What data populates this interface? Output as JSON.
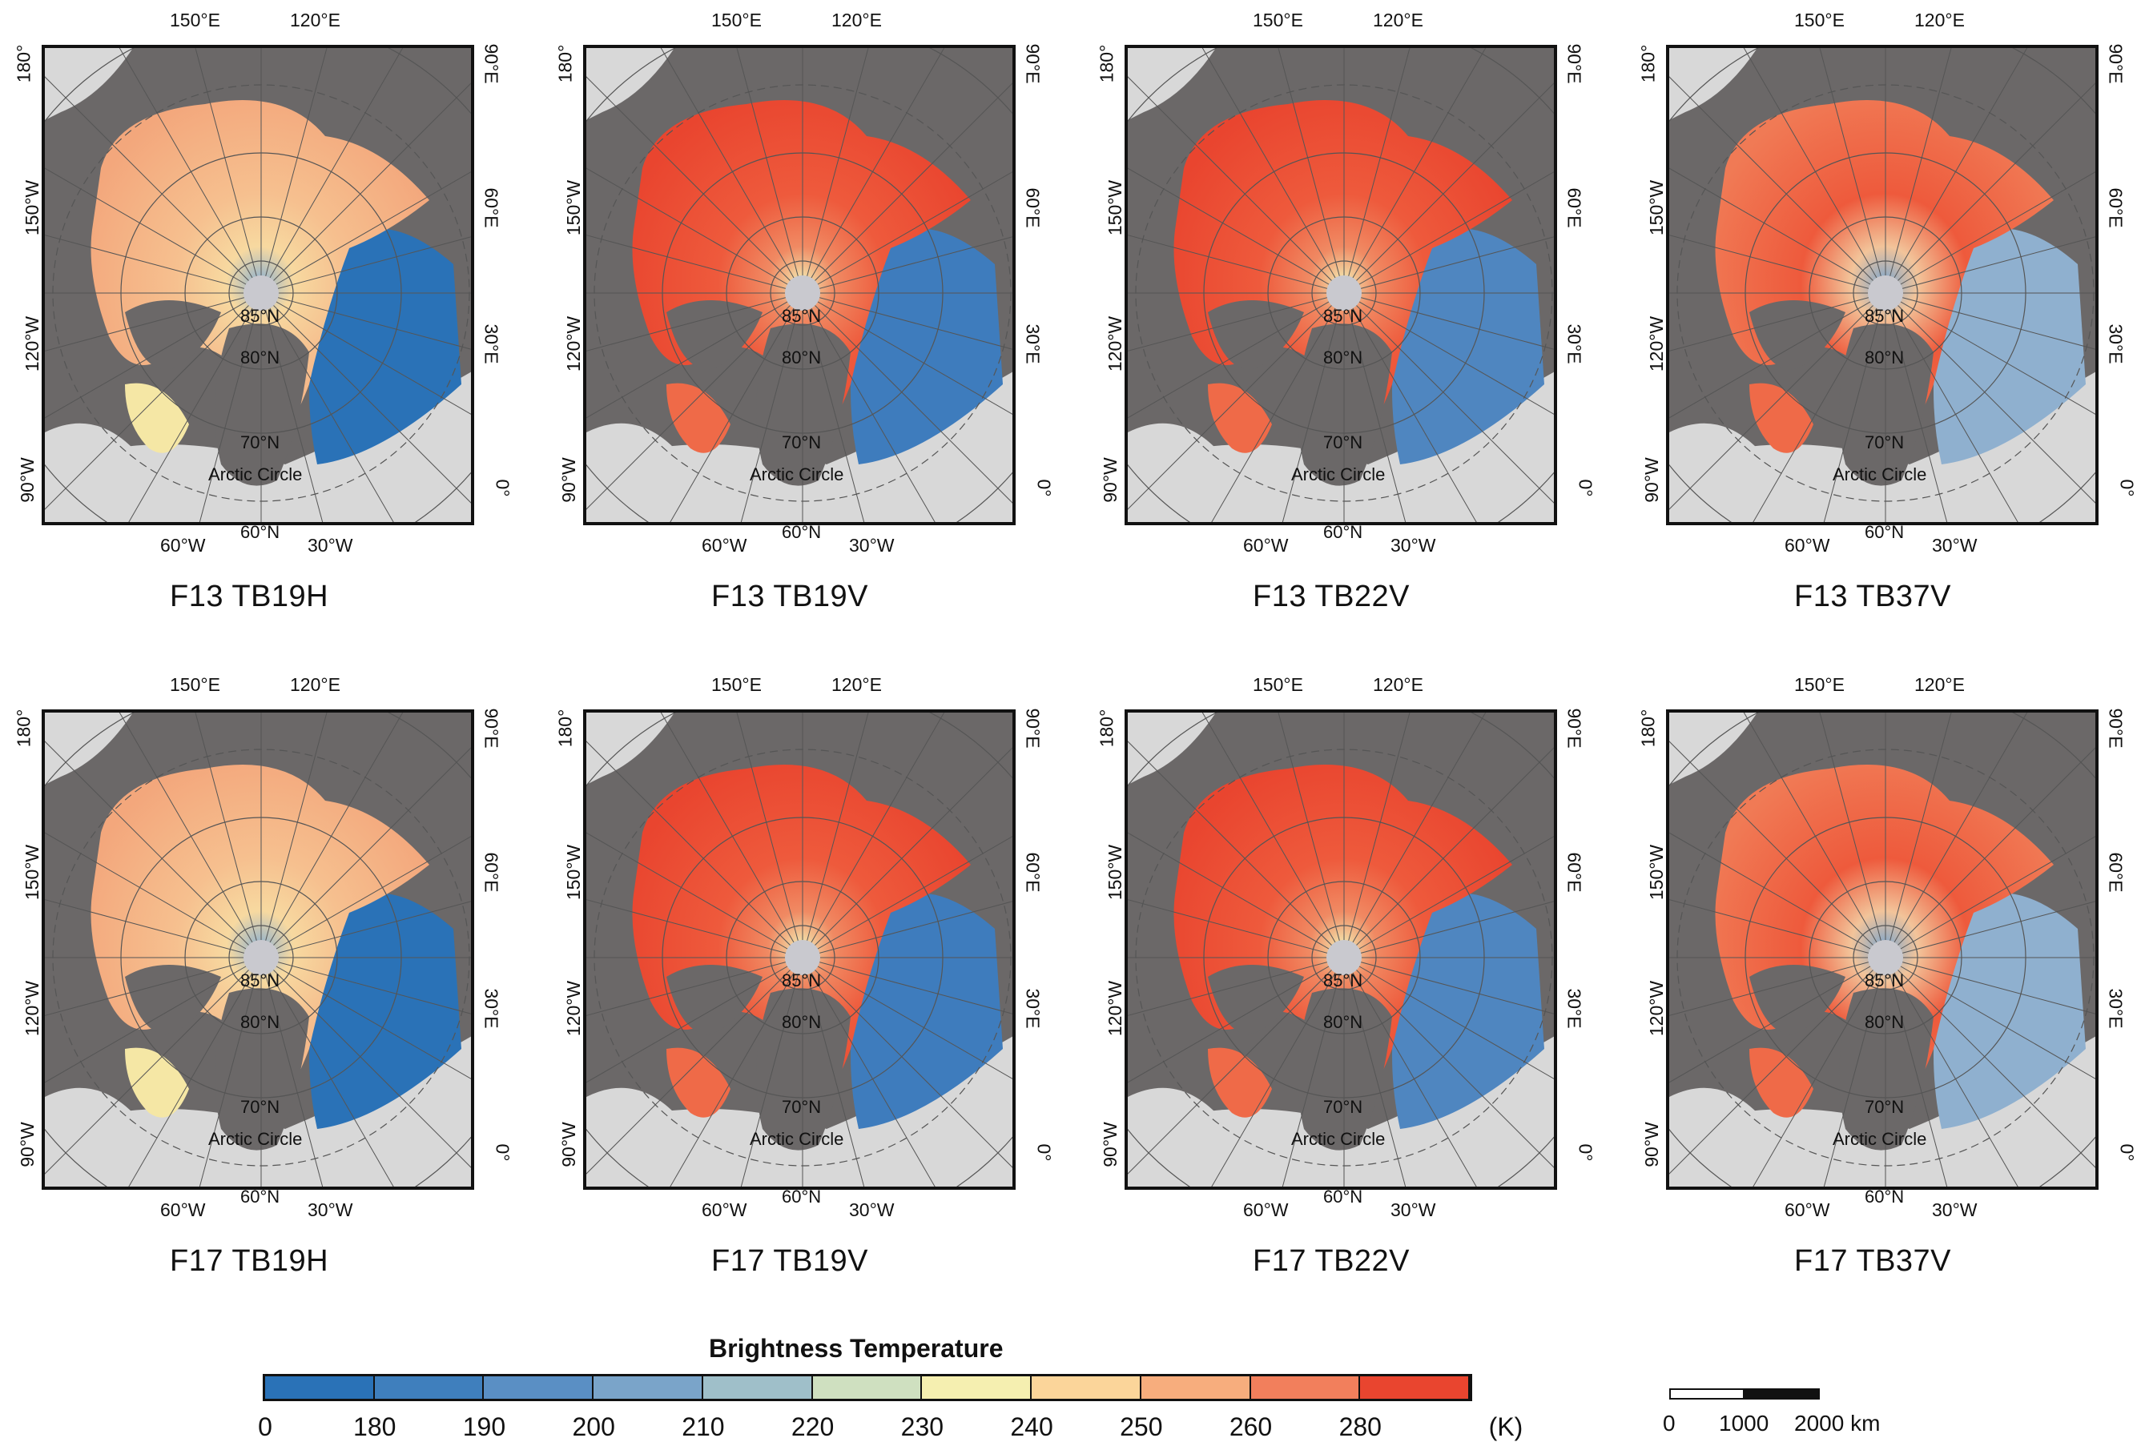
{
  "panels": [
    {
      "title": "F13 TB19H",
      "scheme": "h"
    },
    {
      "title": "F13 TB19V",
      "scheme": "v19"
    },
    {
      "title": "F13 TB22V",
      "scheme": "v22"
    },
    {
      "title": "F13 TB37V",
      "scheme": "v37"
    },
    {
      "title": "F17 TB19H",
      "scheme": "h"
    },
    {
      "title": "F17 TB19V",
      "scheme": "v19"
    },
    {
      "title": "F17 TB22V",
      "scheme": "v22"
    },
    {
      "title": "F17 TB37V",
      "scheme": "v37"
    }
  ],
  "axis_labels": {
    "top_1": "150°E",
    "top_2": "120°E",
    "bottom_1": "60°W",
    "bottom_2": "30°W",
    "left_1": "180°",
    "left_2": "150°W",
    "left_3": "120°W",
    "left_4": "90°W",
    "right_1": "90°E",
    "right_2": "60°E",
    "right_3": "30°E",
    "right_4": "0°"
  },
  "inner_labels": {
    "lat85": "85°N",
    "lat80": "80°N",
    "lat70": "70°N",
    "lat60": "60°N",
    "arctic": "Arctic Circle"
  },
  "colorbar": {
    "title": "Brightness Temperature",
    "ticks": [
      "0",
      "180",
      "190",
      "200",
      "210",
      "220",
      "230",
      "240",
      "250",
      "260",
      "280"
    ],
    "unit": "(K)",
    "colors": [
      "#2a72b7",
      "#3f7fbd",
      "#5a8fc4",
      "#7aa4c9",
      "#9fbfc9",
      "#cfe0c0",
      "#f5efb0",
      "#fbd59a",
      "#f7ad7d",
      "#f27f5c",
      "#e9452f"
    ]
  },
  "scale_bar": {
    "labels": [
      "0",
      "1000",
      "2000 km"
    ]
  }
}
